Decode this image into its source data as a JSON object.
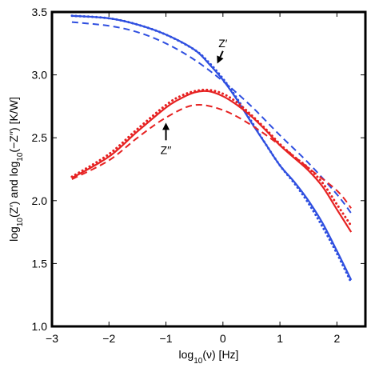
{
  "chart_data": {
    "type": "line",
    "xlabel": {
      "base": "log",
      "sub": "10",
      "rest": "(ν) [Hz]"
    },
    "ylabel": {
      "p1": "log",
      "s1": "10",
      "p2": "(Z′) and log",
      "s2": "10",
      "p3": "(−Z′′) [K/W]"
    },
    "xlim": [
      -3,
      2.5
    ],
    "ylim": [
      1.0,
      3.5
    ],
    "xticks": [
      -3,
      -2,
      -1,
      0,
      1,
      2
    ],
    "yticks": [
      1.0,
      1.5,
      2.0,
      2.5,
      3.0,
      3.5
    ],
    "xtick_labels": [
      "−3",
      "−2",
      "−1",
      "0",
      "1",
      "2"
    ],
    "ytick_labels": [
      "1.0",
      "1.5",
      "2.0",
      "2.5",
      "3.0",
      "3.5"
    ],
    "grid": false,
    "colors": {
      "blue": "#2f4fe0",
      "red": "#e62222"
    },
    "annotations": [
      {
        "text": "Z′",
        "x": 0.0,
        "y": 3.22,
        "arrow_to": [
          -0.1,
          3.09
        ],
        "arrow_from": [
          0.0,
          3.19
        ]
      },
      {
        "text": "Z′′",
        "x": -1.0,
        "y": 2.37,
        "arrow_to": [
          -1.0,
          2.62
        ],
        "arrow_from": [
          -1.0,
          2.48
        ]
      }
    ],
    "series": [
      {
        "color": "blue",
        "style": "solid",
        "x": [
          -2.65,
          -2.0,
          -1.5,
          -1.0,
          -0.5,
          -0.25,
          0.0,
          0.25,
          0.5,
          0.75,
          1.0,
          1.25,
          1.5,
          1.75,
          2.0,
          2.25
        ],
        "y": [
          3.47,
          3.45,
          3.4,
          3.32,
          3.2,
          3.09,
          2.96,
          2.8,
          2.62,
          2.45,
          2.28,
          2.15,
          2.0,
          1.82,
          1.6,
          1.37
        ]
      },
      {
        "color": "blue",
        "style": "dotted",
        "x": [
          -2.65,
          -2.0,
          -1.5,
          -1.0,
          -0.5,
          -0.25,
          0.0,
          0.25,
          0.5,
          0.75,
          1.0,
          1.25,
          1.5,
          1.75,
          2.0,
          2.25
        ],
        "y": [
          3.47,
          3.45,
          3.4,
          3.32,
          3.2,
          3.1,
          2.97,
          2.81,
          2.63,
          2.45,
          2.28,
          2.14,
          1.98,
          1.79,
          1.58,
          1.35
        ]
      },
      {
        "color": "blue",
        "style": "dashed",
        "x": [
          -2.65,
          -2.0,
          -1.5,
          -1.0,
          -0.5,
          0.0,
          0.5,
          1.0,
          1.5,
          2.0,
          2.25
        ],
        "y": [
          3.42,
          3.39,
          3.34,
          3.25,
          3.12,
          2.95,
          2.75,
          2.52,
          2.3,
          2.05,
          1.9
        ]
      },
      {
        "color": "red",
        "style": "solid",
        "x": [
          -2.65,
          -2.0,
          -1.5,
          -1.0,
          -0.75,
          -0.5,
          -0.25,
          0.0,
          0.25,
          0.5,
          0.75,
          1.0,
          1.25,
          1.5,
          1.75,
          2.0,
          2.25
        ],
        "y": [
          2.18,
          2.35,
          2.55,
          2.74,
          2.81,
          2.86,
          2.87,
          2.83,
          2.76,
          2.67,
          2.56,
          2.44,
          2.34,
          2.24,
          2.11,
          1.93,
          1.75
        ]
      },
      {
        "color": "red",
        "style": "dotted",
        "x": [
          -2.65,
          -2.0,
          -1.5,
          -1.0,
          -0.75,
          -0.5,
          -0.25,
          0.0,
          0.25,
          0.5,
          0.75,
          1.0,
          1.25,
          1.5,
          1.75,
          2.0,
          2.25
        ],
        "y": [
          2.19,
          2.37,
          2.57,
          2.76,
          2.83,
          2.87,
          2.88,
          2.85,
          2.78,
          2.68,
          2.57,
          2.45,
          2.35,
          2.26,
          2.14,
          1.97,
          1.8
        ]
      },
      {
        "color": "red",
        "style": "dashed",
        "x": [
          -2.65,
          -2.0,
          -1.5,
          -1.0,
          -0.5,
          0.0,
          0.5,
          1.0,
          1.5,
          2.0,
          2.25
        ],
        "y": [
          2.17,
          2.32,
          2.5,
          2.66,
          2.76,
          2.72,
          2.6,
          2.44,
          2.26,
          2.08,
          1.94
        ]
      }
    ]
  }
}
